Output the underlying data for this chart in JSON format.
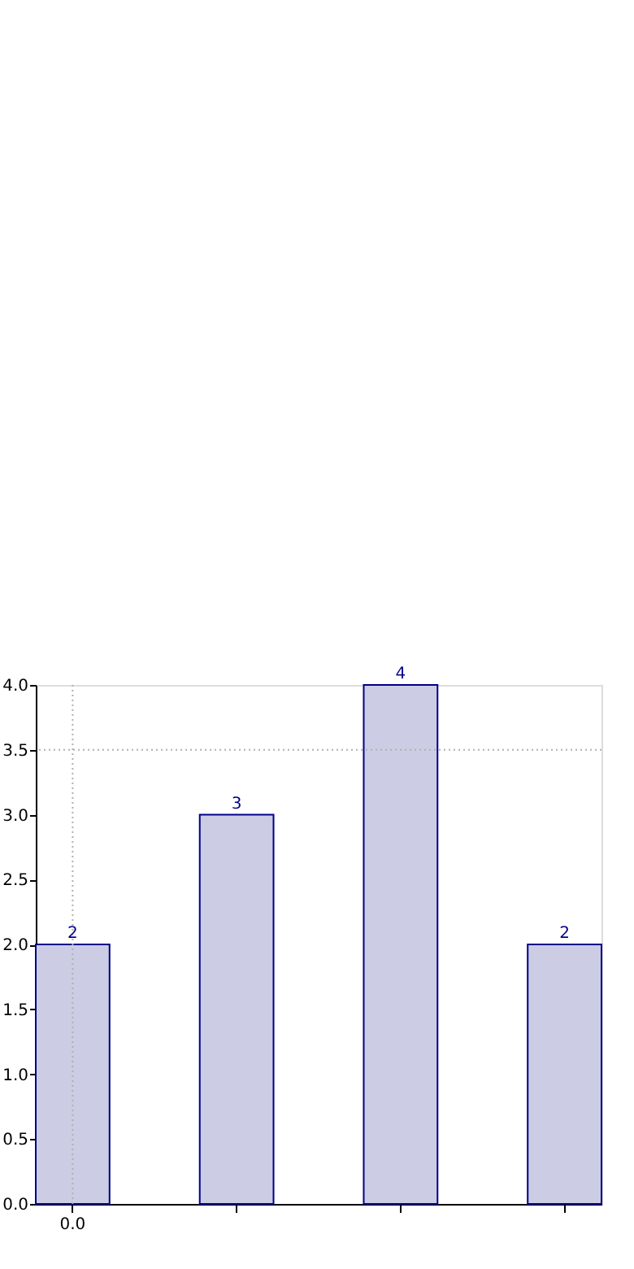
{
  "chart_data": {
    "type": "bar",
    "categories": [
      "0.0",
      null,
      null,
      null
    ],
    "values": [
      2,
      3,
      4,
      2
    ],
    "color": "#cccce4",
    "data_labels": true,
    "ylim": [
      0,
      4
    ],
    "yticks": [
      {
        "value": 0,
        "label": "0.0"
      },
      {
        "value": 0.5,
        "label": "0.5"
      },
      {
        "value": 1,
        "label": "1.0"
      },
      {
        "value": 1.5,
        "label": "1.5"
      },
      {
        "value": 2,
        "label": "2.0"
      },
      {
        "value": 2.5,
        "label": "2.5"
      },
      {
        "value": 3,
        "label": "3.0"
      },
      {
        "value": 3.5,
        "label": "3.5"
      },
      {
        "value": 4,
        "label": "4.0"
      }
    ],
    "ref_lines": [
      {
        "axis": "x",
        "value": "0.0",
        "color": "#b0b0b0",
        "line_style": "dotted"
      },
      {
        "axis": "y",
        "value": 3.5,
        "color": "#b0b0b0",
        "line_style": "dotted"
      }
    ]
  }
}
